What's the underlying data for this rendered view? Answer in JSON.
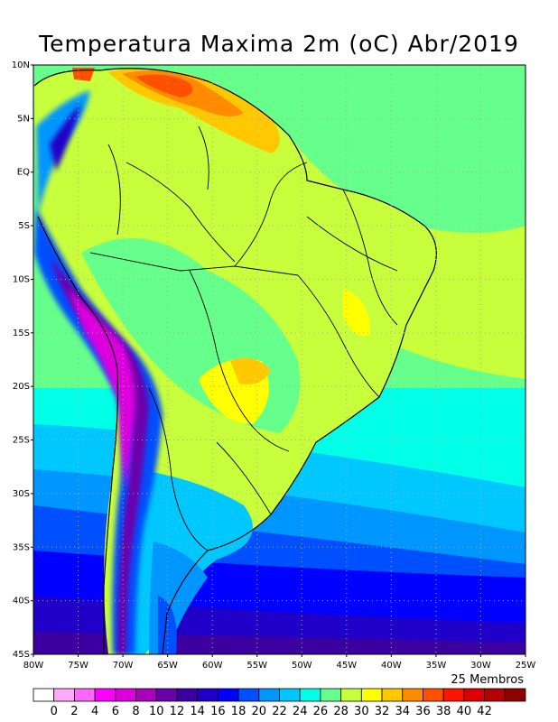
{
  "map": {
    "title": "Temperatura Maxima 2m (oC) Abr/2019",
    "members_note": "25 Membros",
    "lat_labels": [
      "10N",
      "5N",
      "EQ",
      "5S",
      "10S",
      "15S",
      "20S",
      "25S",
      "30S",
      "35S",
      "40S",
      "45S"
    ],
    "lon_labels": [
      "80W",
      "75W",
      "70W",
      "65W",
      "60W",
      "55W",
      "50W",
      "45W",
      "40W",
      "35W",
      "30W",
      "25W"
    ],
    "colorbar": {
      "labels": [
        "0",
        "2",
        "4",
        "6",
        "8",
        "10",
        "12",
        "14",
        "16",
        "18",
        "20",
        "22",
        "24",
        "26",
        "28",
        "30",
        "32",
        "34",
        "36",
        "38",
        "40",
        "42"
      ],
      "colors": [
        "#ffffff",
        "#ffaaff",
        "#ff66ff",
        "#ff00ff",
        "#dd00dd",
        "#aa00bb",
        "#6a00aa",
        "#3c00a0",
        "#2000c8",
        "#0000ff",
        "#0050ff",
        "#0096ff",
        "#00c8ff",
        "#00ffe6",
        "#66ff8c",
        "#c8ff3c",
        "#ffff00",
        "#ffc800",
        "#ff8c00",
        "#ff5000",
        "#ff1400",
        "#dc0000",
        "#b40000",
        "#8c0000"
      ]
    }
  }
}
